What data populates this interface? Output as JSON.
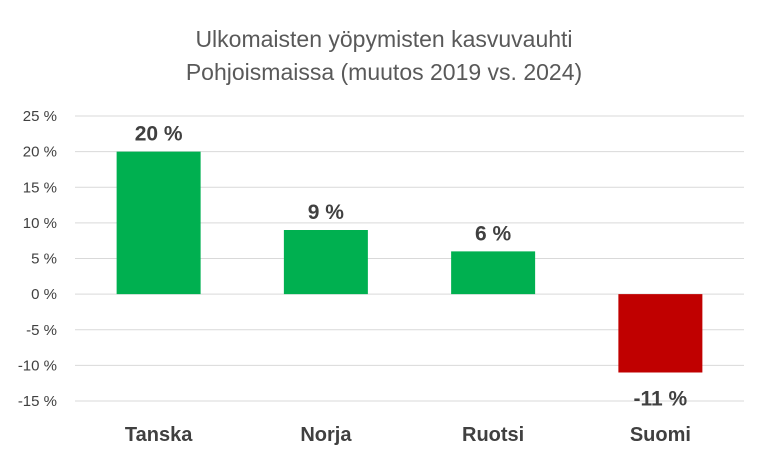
{
  "chart_data": {
    "type": "bar",
    "title_lines": [
      "Ulkomaisten yöpymisten kasvuvauhti",
      "Pohjoismaissa (muutos 2019 vs. 2024)"
    ],
    "categories": [
      "Tanska",
      "Norja",
      "Ruotsi",
      "Suomi"
    ],
    "values": [
      20,
      9,
      6,
      -11
    ],
    "data_labels": [
      "20 %",
      "9 %",
      "6 %",
      "-11 %"
    ],
    "colors": [
      "#00b050",
      "#00b050",
      "#00b050",
      "#c00000"
    ],
    "ylim": [
      -15,
      25
    ],
    "yticks": [
      25,
      20,
      15,
      10,
      5,
      0,
      -5,
      -10,
      -15
    ],
    "ytick_labels": [
      "25 %",
      "20 %",
      "15 %",
      "10 %",
      "5 %",
      "0 %",
      "-5 %",
      "-10 %",
      "-15 %"
    ],
    "grid": true,
    "xlabel": "",
    "ylabel": ""
  }
}
